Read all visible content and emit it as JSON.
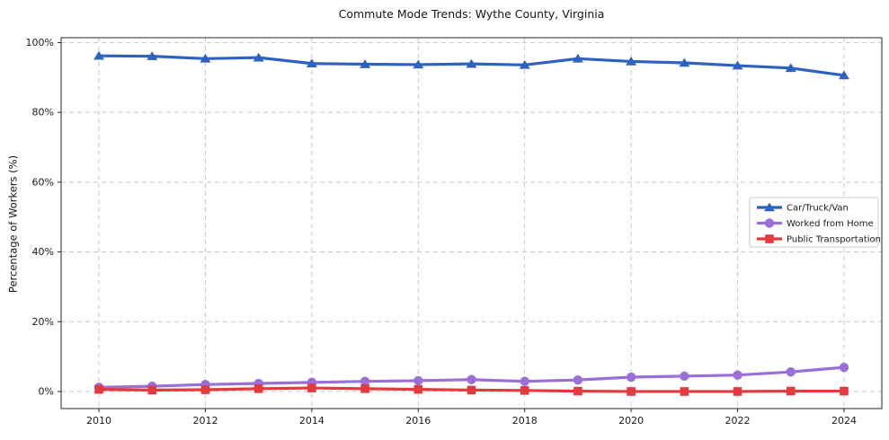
{
  "title": "Commute Mode Trends: Wythe County, Virginia",
  "chart_data": {
    "type": "line",
    "title": "Commute Mode Trends: Wythe County, Virginia",
    "xlabel": "",
    "ylabel": "Percentage of Workers (%)",
    "grid": true,
    "legend_position": "center-right",
    "x": [
      2010,
      2011,
      2012,
      2013,
      2014,
      2015,
      2016,
      2017,
      2018,
      2019,
      2020,
      2021,
      2022,
      2023,
      2024
    ],
    "xticks": [
      2010,
      2012,
      2014,
      2016,
      2018,
      2020,
      2022,
      2024
    ],
    "xtick_labels": [
      "2010",
      "2012",
      "2014",
      "2016",
      "2018",
      "2020",
      "2022",
      "2024"
    ],
    "ytick_values": [
      0,
      20,
      40,
      60,
      80,
      100
    ],
    "ytick_labels": [
      "0%",
      "20%",
      "40%",
      "60%",
      "80%",
      "100%"
    ],
    "xlim": [
      2009.29,
      2024.71
    ],
    "ylim": [
      -4.9,
      101.4
    ],
    "series": [
      {
        "name": "Car/Truck/Van",
        "color": "#2d62c1",
        "marker": "triangle",
        "values": [
          96.2,
          96.1,
          95.4,
          95.7,
          94.0,
          93.8,
          93.7,
          93.9,
          93.6,
          95.4,
          94.6,
          94.2,
          93.4,
          92.7,
          90.6
        ]
      },
      {
        "name": "Worked from Home",
        "color": "#9a6fd8",
        "marker": "circle",
        "values": [
          1.2,
          1.5,
          2.0,
          2.3,
          2.6,
          2.9,
          3.1,
          3.4,
          2.9,
          3.3,
          4.1,
          4.4,
          4.7,
          5.6,
          6.9
        ]
      },
      {
        "name": "Public Transportation",
        "color": "#e23a3e",
        "marker": "square",
        "values": [
          0.6,
          0.4,
          0.5,
          0.8,
          1.0,
          0.8,
          0.6,
          0.4,
          0.3,
          0.1,
          0.0,
          0.0,
          0.0,
          0.1,
          0.1
        ]
      }
    ]
  }
}
